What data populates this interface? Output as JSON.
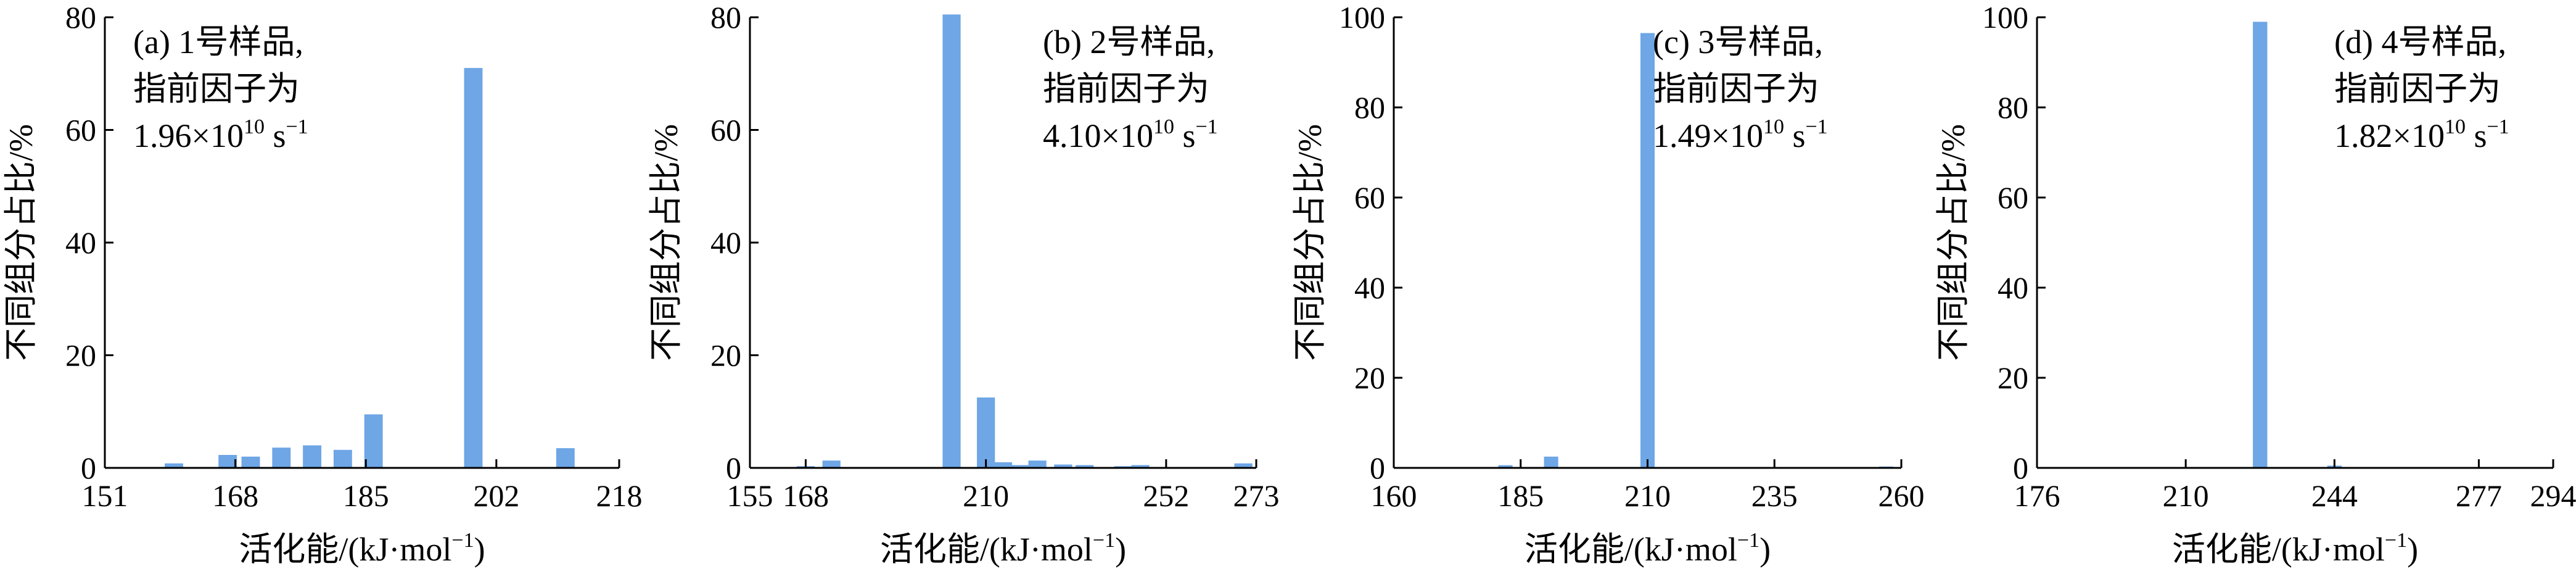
{
  "chart_data": [
    {
      "type": "bar",
      "panel": "a",
      "annotation": [
        "(a) 1号样品,",
        "指前因子为",
        {
          "mantissa": "1.96×10",
          "exp": "10",
          "unit": "s",
          "unit_exp": "−1"
        }
      ],
      "xlabel": {
        "main": "活化能/(kJ·mol",
        "sup": "−1",
        "tail": ")"
      },
      "ylabel": "不同组分占比/%",
      "xlim": [
        151,
        218
      ],
      "xticks": [
        151,
        168,
        185,
        202,
        218
      ],
      "ylim": [
        0,
        80
      ],
      "yticks": [
        0,
        20,
        40,
        60,
        80
      ],
      "bar_width": 2.4,
      "color": "#6ea6e6",
      "x": [
        160,
        167,
        170,
        174,
        178,
        182,
        186,
        199,
        211
      ],
      "values": [
        0.8,
        2.3,
        2.0,
        3.6,
        4.0,
        3.2,
        9.5,
        71.0,
        3.5
      ]
    },
    {
      "type": "bar",
      "panel": "b",
      "annotation": [
        "(b) 2号样品,",
        "指前因子为",
        {
          "mantissa": "4.10×10",
          "exp": "10",
          "unit": "s",
          "unit_exp": "−1"
        }
      ],
      "xlabel": {
        "main": "活化能/(kJ·mol",
        "sup": "−1",
        "tail": ")"
      },
      "ylabel": "不同组分占比/%",
      "xlim": [
        155,
        273
      ],
      "xticks": [
        155,
        168,
        210,
        252,
        273
      ],
      "ylim": [
        0,
        80
      ],
      "yticks": [
        0,
        20,
        40,
        60,
        80
      ],
      "bar_width": 4.2,
      "color": "#6ea6e6",
      "x": [
        168,
        174,
        202,
        210,
        214,
        218,
        222,
        228,
        233,
        242,
        246,
        270
      ],
      "values": [
        0.3,
        1.3,
        80.5,
        12.5,
        1.0,
        0.5,
        1.3,
        0.6,
        0.5,
        0.3,
        0.5,
        0.8
      ]
    },
    {
      "type": "bar",
      "panel": "c",
      "annotation": [
        "(c) 3号样品,",
        "指前因子为",
        {
          "mantissa": "1.49×10",
          "exp": "10",
          "unit": "s",
          "unit_exp": "−1"
        }
      ],
      "xlabel": {
        "main": "活化能/(kJ·mol",
        "sup": "−1",
        "tail": ")"
      },
      "ylabel": "不同组分占比/%",
      "xlim": [
        160,
        260
      ],
      "xticks": [
        160,
        185,
        210,
        235,
        260
      ],
      "ylim": [
        0,
        100
      ],
      "yticks": [
        0,
        20,
        40,
        60,
        80,
        100
      ],
      "bar_width": 2.8,
      "color": "#6ea6e6",
      "x": [
        182,
        191,
        210,
        257
      ],
      "values": [
        0.6,
        2.5,
        96.5,
        0.3
      ]
    },
    {
      "type": "bar",
      "panel": "d",
      "annotation": [
        "(d) 4号样品,",
        "指前因子为",
        {
          "mantissa": "1.82×10",
          "exp": "10",
          "unit": "s",
          "unit_exp": "−1"
        }
      ],
      "xlabel": {
        "main": "活化能/(kJ·mol",
        "sup": "−1",
        "tail": ")"
      },
      "ylabel": "不同组分占比/%",
      "xlim": [
        176,
        294
      ],
      "xticks": [
        176,
        210,
        244,
        277,
        294
      ],
      "ylim": [
        0,
        100
      ],
      "yticks": [
        0,
        20,
        40,
        60,
        80,
        100
      ],
      "bar_width": 3.3,
      "color": "#6ea6e6",
      "x": [
        227,
        244,
        290
      ],
      "values": [
        99.0,
        0.5,
        0.2
      ]
    }
  ]
}
